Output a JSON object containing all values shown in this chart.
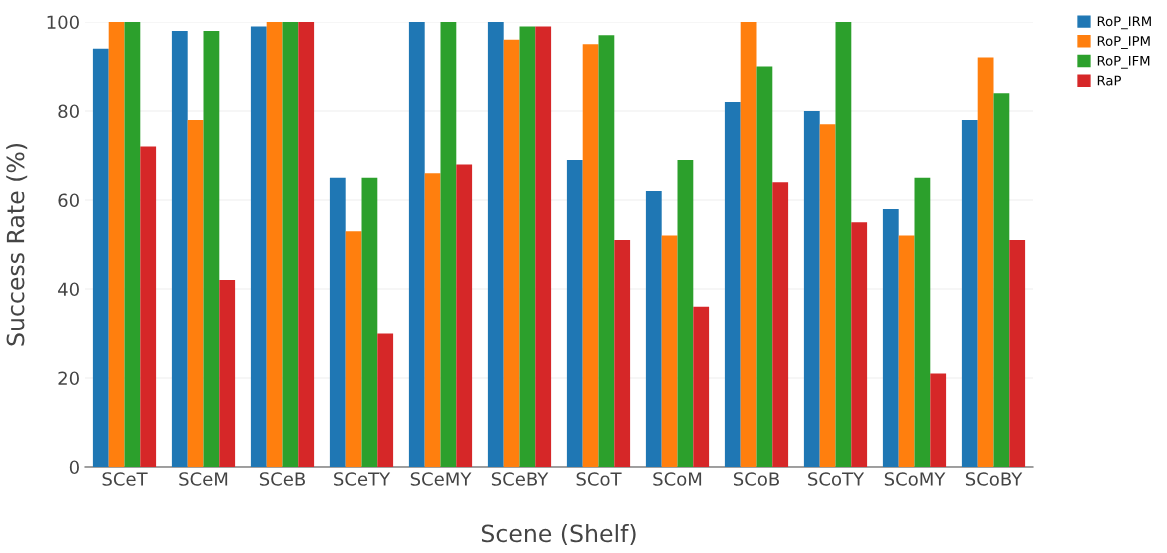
{
  "chart_data": {
    "type": "bar",
    "xlabel": "Scene (Shelf)",
    "ylabel": "Success Rate (%)",
    "categories": [
      "SCeT",
      "SCeM",
      "SCeB",
      "SCeTY",
      "SCeMY",
      "SCeBY",
      "SCoT",
      "SCoM",
      "SCoB",
      "SCoTY",
      "SCoMY",
      "SCoBY"
    ],
    "series": [
      {
        "name": "RoP_IRM",
        "color": "#1f77b4",
        "values": [
          94,
          98,
          99,
          65,
          100,
          100,
          69,
          62,
          82,
          80,
          58,
          78
        ]
      },
      {
        "name": "RoP_IPM",
        "color": "#ff7f0e",
        "values": [
          100,
          78,
          100,
          53,
          66,
          96,
          95,
          52,
          100,
          77,
          52,
          92
        ]
      },
      {
        "name": "RoP_IFM",
        "color": "#2ca02c",
        "values": [
          100,
          98,
          100,
          65,
          100,
          99,
          97,
          69,
          90,
          100,
          65,
          84
        ]
      },
      {
        "name": "RaP",
        "color": "#d62728",
        "values": [
          72,
          42,
          100,
          30,
          68,
          99,
          51,
          36,
          64,
          55,
          21,
          51
        ]
      }
    ],
    "ylim": [
      0,
      100
    ],
    "yticks": [
      0,
      20,
      40,
      60,
      80,
      100
    ],
    "grid": "y",
    "legend": "top right"
  }
}
